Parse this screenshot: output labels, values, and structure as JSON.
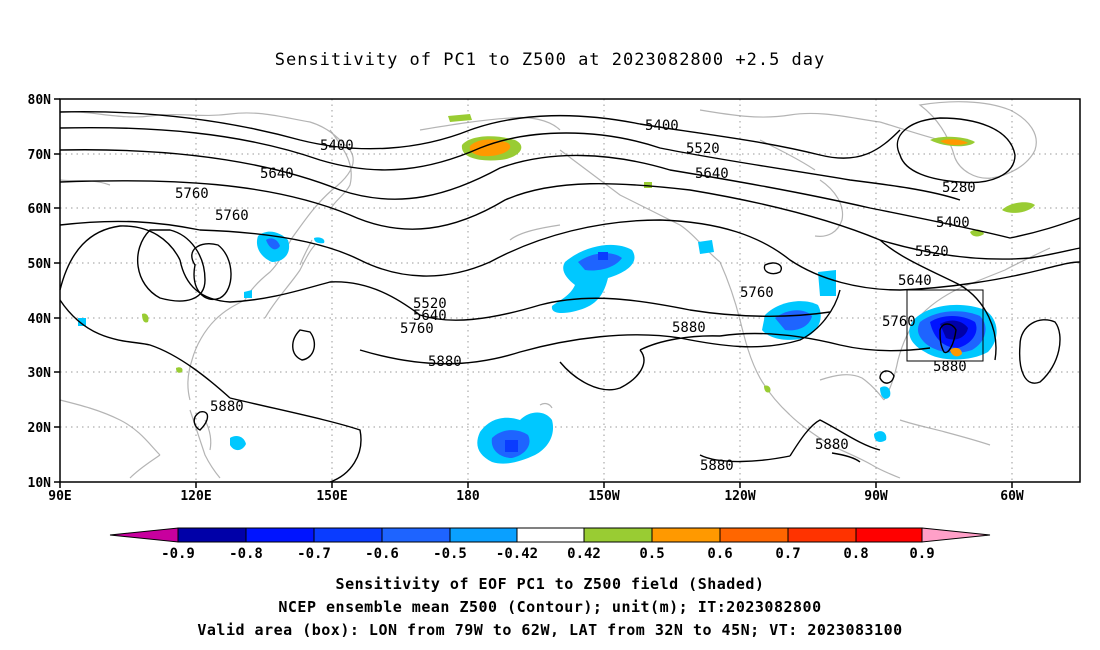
{
  "title": "Sensitivity of PC1 to Z500 at 2023082800 +2.5 day",
  "map": {
    "projection": "cylindrical",
    "lon_ticks": [
      "90E",
      "120E",
      "150E",
      "180",
      "150W",
      "120W",
      "90W",
      "60W"
    ],
    "lat_ticks": [
      "80N",
      "70N",
      "60N",
      "50N",
      "40N",
      "30N",
      "20N",
      "10N"
    ],
    "grid": "dotted",
    "coastline_color": "#b4b4b4",
    "contour_labels": [
      "5400",
      "5400",
      "5520",
      "5640",
      "5640",
      "5760",
      "5760",
      "5520",
      "5640",
      "5760",
      "5880",
      "5880",
      "5880",
      "5760",
      "5880",
      "5280",
      "5400",
      "5520",
      "5640",
      "5760",
      "5880",
      "5880"
    ],
    "valid_box": {
      "lon_min": "79W",
      "lon_max": "62W",
      "lat_min": "32N",
      "lat_max": "45N"
    }
  },
  "colorbar": {
    "labels": [
      "-0.9",
      "-0.8",
      "-0.7",
      "-0.6",
      "-0.5",
      "-0.42",
      "0.42",
      "0.5",
      "0.6",
      "0.7",
      "0.8",
      "0.9"
    ],
    "colors": [
      "#c8009e",
      "#0000a8",
      "#0014ff",
      "#0a3cff",
      "#1e64ff",
      "#0aa0ff",
      "#00c8ff",
      "#ffffff",
      "#99cc33",
      "#ff9900",
      "#ff6600",
      "#ff3300",
      "#ff0000",
      "#ffa0c8"
    ]
  },
  "footer": {
    "line1": "Sensitivity of EOF PC1 to Z500 field (Shaded)",
    "line2": "NCEP ensemble mean Z500 (Contour); unit(m); IT:2023082800",
    "line3": "Valid area (box): LON from 79W to 62W, LAT from 32N to 45N; VT: 2023083100"
  }
}
